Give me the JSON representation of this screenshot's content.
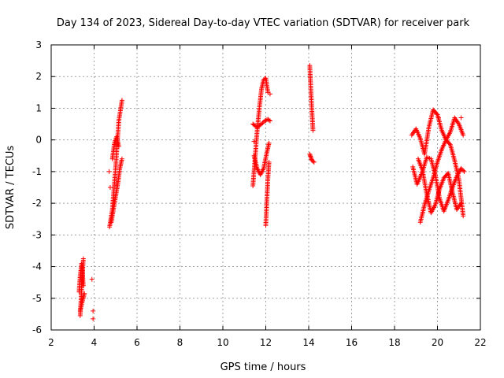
{
  "chart_data": {
    "type": "scatter",
    "title": "Day 134 of 2023, Sidereal Day-to-day VTEC variation (SDTVAR) for receiver park",
    "xlabel": "GPS time / hours",
    "ylabel": "SDTVAR / TECUs",
    "xlim": [
      2,
      22
    ],
    "ylim": [
      -6,
      3
    ],
    "xticks": [
      2,
      4,
      6,
      8,
      10,
      12,
      14,
      16,
      18,
      20,
      22
    ],
    "yticks": [
      -6,
      -5,
      -4,
      -3,
      -2,
      -1,
      0,
      1,
      2,
      3
    ],
    "grid": true,
    "marker": "+",
    "series": [
      {
        "name": "SDTVAR",
        "color": "#ff0000",
        "segments": [
          {
            "x": [
              3.35,
              3.4,
              3.45,
              3.5
            ],
            "y": [
              -5.55,
              -4.9,
              -4.3,
              -3.75
            ]
          },
          {
            "x": [
              3.3,
              3.35,
              3.42,
              3.5
            ],
            "y": [
              -4.8,
              -4.3,
              -3.9,
              -4.6
            ]
          },
          {
            "x": [
              3.35,
              3.45,
              3.55
            ],
            "y": [
              -5.4,
              -5.1,
              -4.85
            ]
          },
          {
            "x": [
              4.72,
              4.85,
              5.0,
              5.15,
              5.3
            ],
            "y": [
              -2.75,
              -2.2,
              -0.9,
              0.6,
              1.25
            ]
          },
          {
            "x": [
              4.8,
              4.9,
              5.0,
              5.1,
              5.2,
              5.3
            ],
            "y": [
              -2.6,
              -2.2,
              -1.8,
              -1.4,
              -0.9,
              -0.6
            ]
          },
          {
            "x": [
              4.85,
              4.95,
              5.05,
              5.15
            ],
            "y": [
              -0.6,
              -0.1,
              0.1,
              -0.2
            ]
          },
          {
            "x": [
              11.4,
              11.5,
              11.6,
              11.7,
              11.8,
              11.9,
              12.0,
              12.1
            ],
            "y": [
              -1.45,
              -0.6,
              0.3,
              1.0,
              1.6,
              1.9,
              1.95,
              1.5
            ]
          },
          {
            "x": [
              11.4,
              11.6,
              11.8,
              11.95,
              12.1,
              12.2
            ],
            "y": [
              0.5,
              0.4,
              0.5,
              0.6,
              0.65,
              0.6
            ]
          },
          {
            "x": [
              11.45,
              11.6,
              11.75,
              11.9,
              12.05,
              12.15
            ],
            "y": [
              -0.5,
              -0.9,
              -1.1,
              -0.9,
              -0.4,
              -0.1
            ]
          },
          {
            "x": [
              12.0,
              12.05,
              12.1,
              12.15
            ],
            "y": [
              -2.7,
              -1.9,
              -1.2,
              -0.7
            ]
          },
          {
            "x": [
              14.05,
              14.1,
              14.15,
              14.2
            ],
            "y": [
              2.35,
              1.6,
              0.9,
              0.3
            ]
          },
          {
            "x": [
              14.05,
              14.1,
              14.15,
              14.25
            ],
            "y": [
              -0.45,
              -0.55,
              -0.65,
              -0.7
            ]
          },
          {
            "x": [
              18.8,
              19.0,
              19.2,
              19.4,
              19.6,
              19.8,
              20.0,
              20.2,
              20.4,
              20.6,
              20.8,
              21.0,
              21.2
            ],
            "y": [
              0.15,
              0.35,
              0.05,
              -0.45,
              0.4,
              0.95,
              0.8,
              0.3,
              0.0,
              0.25,
              0.7,
              0.5,
              0.15
            ]
          },
          {
            "x": [
              18.85,
              19.05,
              19.3,
              19.5,
              19.7,
              19.9,
              20.1,
              20.3,
              20.5,
              20.7,
              20.9,
              21.1,
              21.25
            ],
            "y": [
              -0.85,
              -1.4,
              -1.0,
              -0.55,
              -0.6,
              -1.1,
              -1.85,
              -2.25,
              -1.9,
              -1.5,
              -1.15,
              -0.9,
              -1.0
            ]
          },
          {
            "x": [
              19.2,
              19.4,
              19.6,
              19.8,
              20.0,
              20.2,
              20.4,
              20.6,
              20.8,
              21.0,
              21.2
            ],
            "y": [
              -2.6,
              -2.05,
              -1.6,
              -1.2,
              -0.7,
              -0.3,
              0.0,
              -0.15,
              -0.65,
              -1.25,
              -2.4
            ]
          },
          {
            "x": [
              19.1,
              19.3,
              19.5,
              19.7,
              19.9,
              20.1,
              20.3,
              20.5,
              20.7,
              20.9,
              21.1
            ],
            "y": [
              -0.6,
              -0.95,
              -1.7,
              -2.3,
              -2.05,
              -1.55,
              -1.2,
              -1.05,
              -1.65,
              -2.2,
              -2.0
            ]
          }
        ],
        "isolated": [
          {
            "x": 3.9,
            "y": -4.4
          },
          {
            "x": 3.95,
            "y": -5.4
          },
          {
            "x": 3.95,
            "y": -5.65
          },
          {
            "x": 4.75,
            "y": -1.5
          },
          {
            "x": 4.7,
            "y": -1.0
          },
          {
            "x": 12.2,
            "y": 1.45
          },
          {
            "x": 11.45,
            "y": -0.05
          },
          {
            "x": 20.05,
            "y": 0.7
          },
          {
            "x": 21.1,
            "y": 0.7
          }
        ]
      }
    ]
  }
}
